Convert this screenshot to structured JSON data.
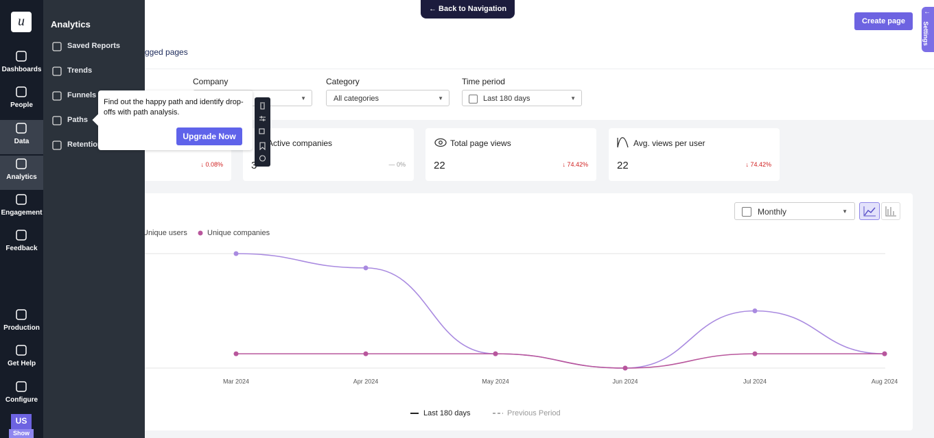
{
  "nav": {
    "items": [
      "Dashboards",
      "People",
      "Data",
      "Analytics",
      "Engagement",
      "Feedback"
    ],
    "bottom": [
      "Production",
      "Get Help",
      "Configure"
    ],
    "avatar": "US",
    "show": "Show"
  },
  "submenu": {
    "title": "Analytics",
    "items": [
      "Saved Reports",
      "Trends",
      "Funnels",
      "Paths",
      "Retention"
    ]
  },
  "tooltip": {
    "text": "Find out the happy path and identify drop-offs with path analysis.",
    "button": "Upgrade Now"
  },
  "topbar": {
    "back": "Back to Navigation",
    "create": "Create page",
    "settings": "Settings",
    "tab": "gged pages"
  },
  "filters": [
    {
      "label": "Company"
    },
    {
      "label": "Category",
      "value": "All categories"
    },
    {
      "label": "Time period",
      "value": "Last 180 days"
    }
  ],
  "stats": [
    {
      "change": "0.08%"
    },
    {
      "label": "Active companies",
      "value": 3,
      "change": "0%"
    },
    {
      "label": "Total page views",
      "value": 22,
      "change": "74.42%"
    },
    {
      "label": "Avg. views per user",
      "value": 22,
      "change": "74.42%"
    }
  ],
  "chart_data": {
    "type": "line",
    "granularity": "Monthly",
    "categories": [
      "Mar 2024",
      "Apr 2024",
      "May 2024",
      "Jun 2024",
      "Jul 2024",
      "Aug 2024"
    ],
    "series": [
      {
        "name": "Unique users",
        "color": "#a98ae0",
        "values": [
          8,
          7,
          1,
          0,
          4,
          1
        ]
      },
      {
        "name": "Unique companies",
        "color": "#b8569c",
        "values": [
          1,
          1,
          1,
          0,
          1,
          1
        ]
      }
    ],
    "ylim": [
      0,
      8
    ],
    "period_legend": [
      "Last 180 days",
      "Previous Period"
    ]
  }
}
